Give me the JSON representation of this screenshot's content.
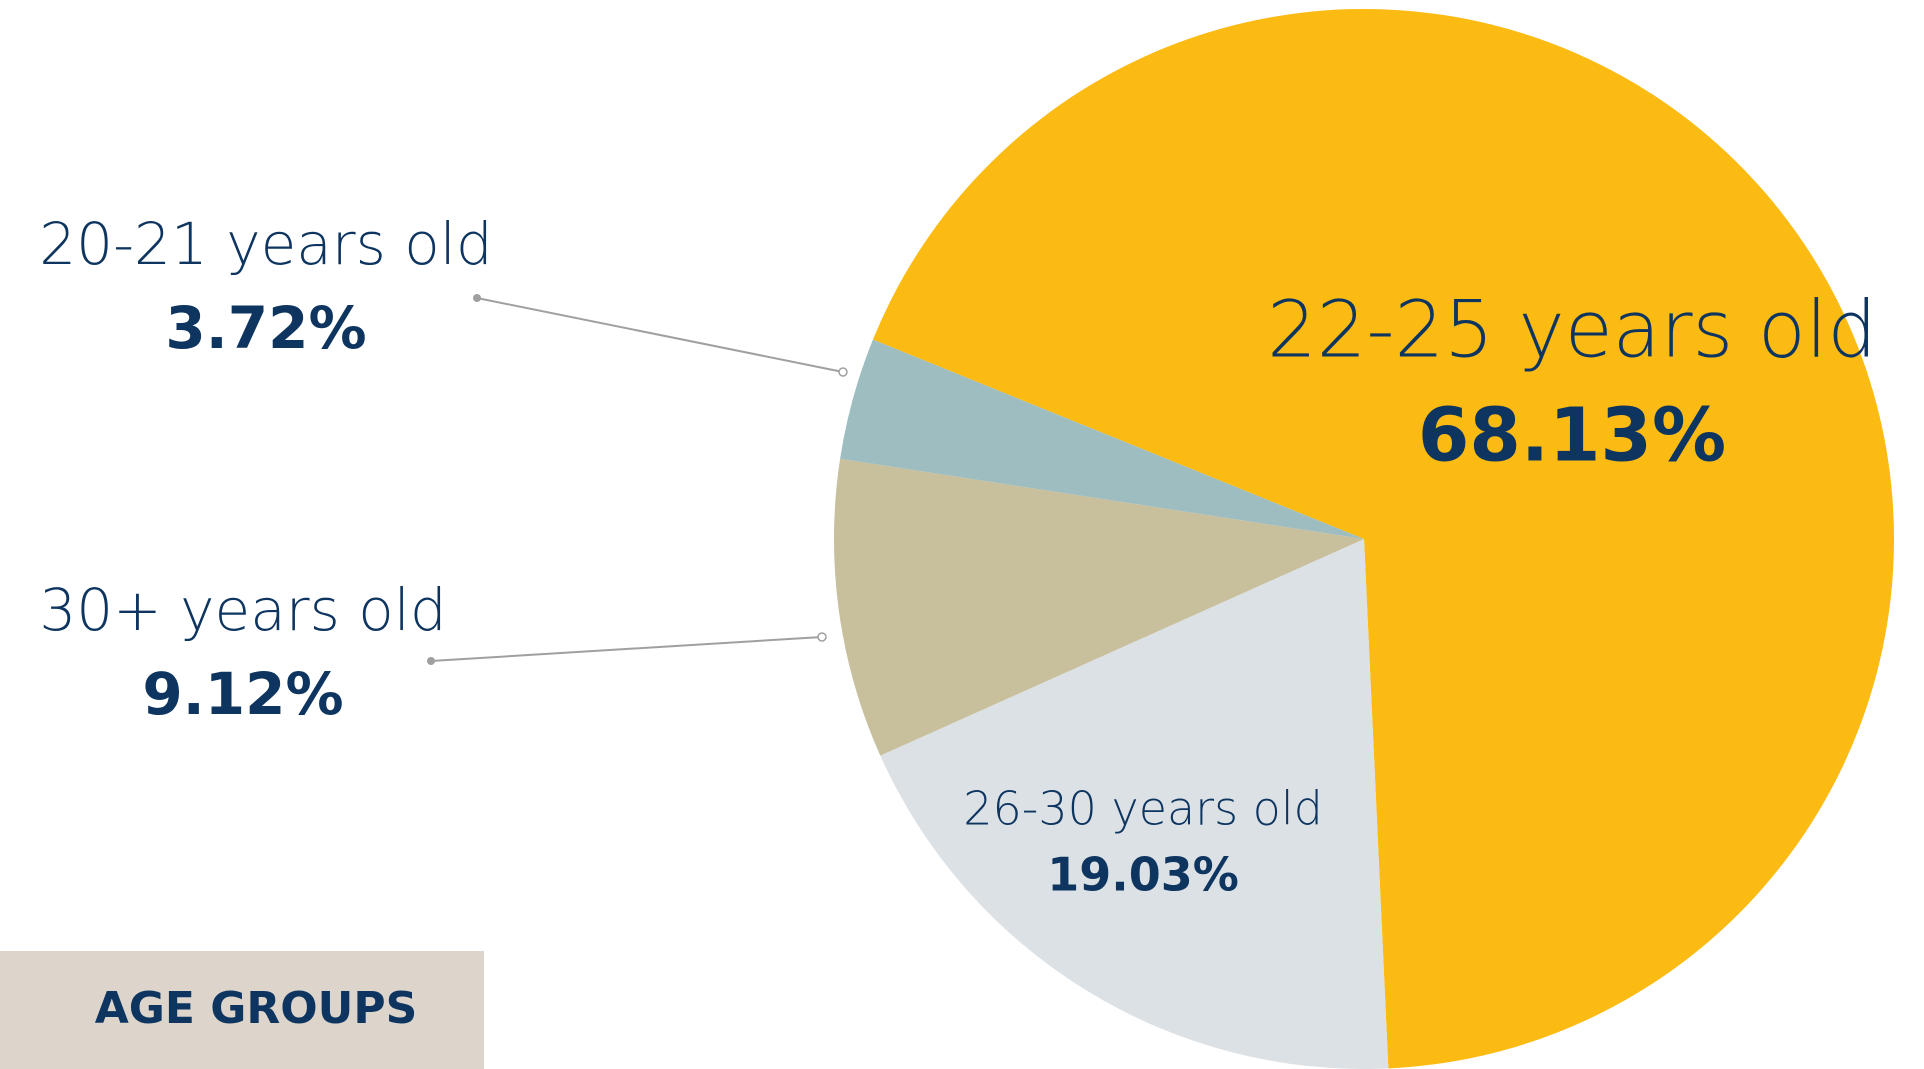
{
  "chart_data": {
    "type": "pie",
    "categories": [
      "22-25 years old",
      "26-30 years old",
      "30+ years old",
      "20-21 years old"
    ],
    "values": [
      68.13,
      19.03,
      9.12,
      3.72
    ],
    "value_labels": [
      "68.13%",
      "19.03%",
      "9.12%",
      "3.72%"
    ],
    "colors": [
      "#fbbb13",
      "#dce1e5",
      "#c8bf9d",
      "#9dbdc0"
    ],
    "title": "AGE GROUPS"
  }
}
